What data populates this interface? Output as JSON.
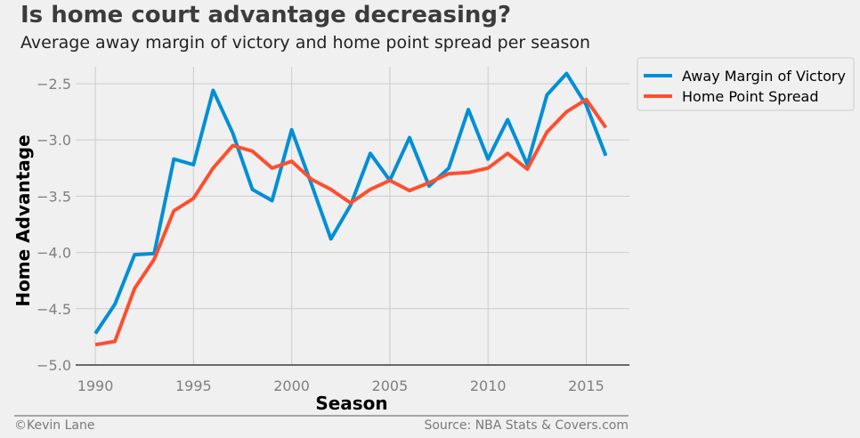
{
  "chart_data": {
    "type": "line",
    "title": "Is home court advantage decreasing?",
    "subtitle": "Average away margin of victory and home point spread per season",
    "xlabel": "Season",
    "ylabel": "Home Advantage",
    "xlim": [
      1989,
      2017.2
    ],
    "ylim": [
      -5.0,
      -2.35
    ],
    "x_ticks": [
      1990,
      1995,
      2000,
      2005,
      2010,
      2015
    ],
    "y_ticks": [
      -5.0,
      -4.5,
      -4.0,
      -3.5,
      -3.0,
      -2.5
    ],
    "y_tick_labels": [
      "−5.0",
      "−4.5",
      "−4.0",
      "−3.5",
      "−3.0",
      "−2.5"
    ],
    "grid": true,
    "legend_position": "outside top-right",
    "x": [
      1990,
      1991,
      1992,
      1993,
      1994,
      1995,
      1996,
      1997,
      1998,
      1999,
      2000,
      2001,
      2002,
      2003,
      2004,
      2005,
      2006,
      2007,
      2008,
      2009,
      2010,
      2011,
      2012,
      2013,
      2014,
      2015,
      2016
    ],
    "series": [
      {
        "name": "Away Margin of Victory",
        "color": "#008fd5",
        "values": [
          -4.72,
          -4.46,
          -4.02,
          -4.01,
          -3.17,
          -3.22,
          -2.56,
          -2.94,
          -3.44,
          -3.54,
          -2.91,
          -3.39,
          -3.88,
          -3.58,
          -3.12,
          -3.36,
          -2.98,
          -3.41,
          -3.25,
          -2.73,
          -3.17,
          -2.82,
          -3.22,
          -2.6,
          -2.41,
          -2.69,
          -3.14
        ]
      },
      {
        "name": "Home Point Spread",
        "color": "#fc4f30",
        "values": [
          -4.82,
          -4.79,
          -4.32,
          -4.06,
          -3.63,
          -3.52,
          -3.25,
          -3.05,
          -3.1,
          -3.25,
          -3.19,
          -3.35,
          -3.44,
          -3.56,
          -3.44,
          -3.36,
          -3.45,
          -3.38,
          -3.3,
          -3.29,
          -3.25,
          -3.12,
          -3.26,
          -2.93,
          -2.75,
          -2.64,
          -2.89
        ]
      }
    ]
  },
  "footer": {
    "credit": "©Kevin Lane",
    "source": "Source: NBA Stats & Covers.com"
  }
}
